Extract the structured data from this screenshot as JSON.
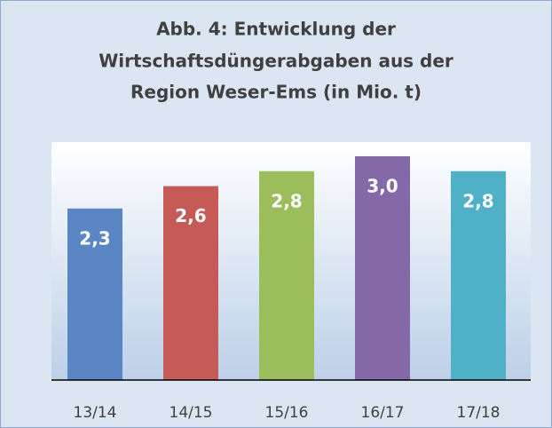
{
  "chart_data": {
    "type": "bar",
    "title": [
      "Abb. 4: Entwicklung der",
      "Wirtschaftsdüngerabgaben aus der",
      "Region Weser-Ems (in Mio. t)"
    ],
    "categories": [
      "13/14",
      "14/15",
      "15/16",
      "16/17",
      "17/18"
    ],
    "values": [
      2.3,
      2.6,
      2.8,
      3.0,
      2.8
    ],
    "value_labels": [
      "2,3",
      "2,6",
      "2,8",
      "3,0",
      "2,8"
    ],
    "colors": [
      "#5b86c4",
      "#c55a56",
      "#9bbd5c",
      "#8468a8",
      "#4fb0c8"
    ]
  }
}
